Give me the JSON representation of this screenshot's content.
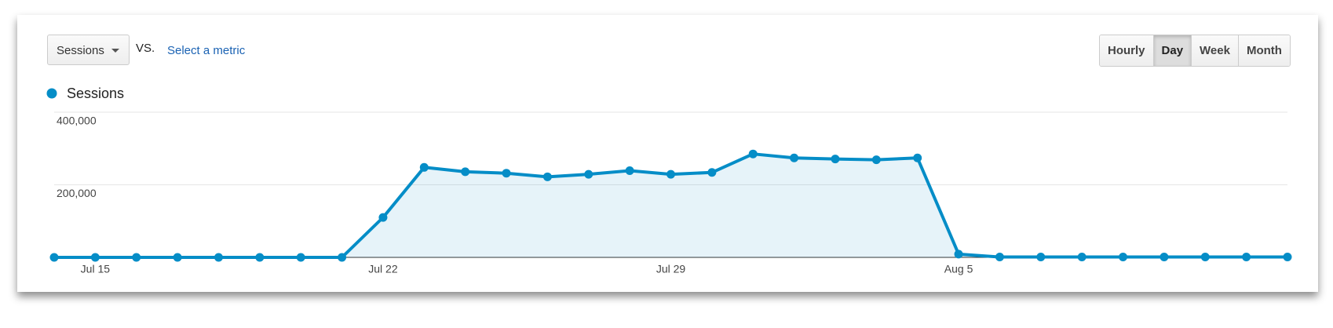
{
  "controls": {
    "metric": "Sessions",
    "vs": "VS.",
    "select_metric": "Select a metric",
    "periods": [
      "Hourly",
      "Day",
      "Week",
      "Month"
    ],
    "active_period": "Day"
  },
  "chart_data": {
    "type": "area",
    "categories": [
      null,
      "Jul 15",
      null,
      null,
      null,
      null,
      null,
      null,
      "Jul 22",
      null,
      null,
      null,
      null,
      null,
      null,
      "Jul 29",
      null,
      null,
      null,
      null,
      null,
      null,
      "Aug 5",
      null,
      null,
      null,
      null,
      null,
      null,
      null,
      null
    ],
    "series": [
      {
        "name": "Sessions",
        "color": "#058dc7",
        "values": [
          0,
          0,
          0,
          0,
          0,
          0,
          0,
          0,
          110000,
          248000,
          236000,
          232000,
          222000,
          229000,
          239000,
          229000,
          234000,
          285000,
          274000,
          271000,
          269000,
          274000,
          9000,
          1000,
          1000,
          1000,
          1000,
          1000,
          1000,
          1000,
          1000
        ]
      }
    ],
    "ylim": [
      0,
      400000
    ],
    "yticks": [
      {
        "value": 200000,
        "label": "200,000"
      },
      {
        "value": 400000,
        "label": "400,000"
      }
    ],
    "grid": true
  }
}
